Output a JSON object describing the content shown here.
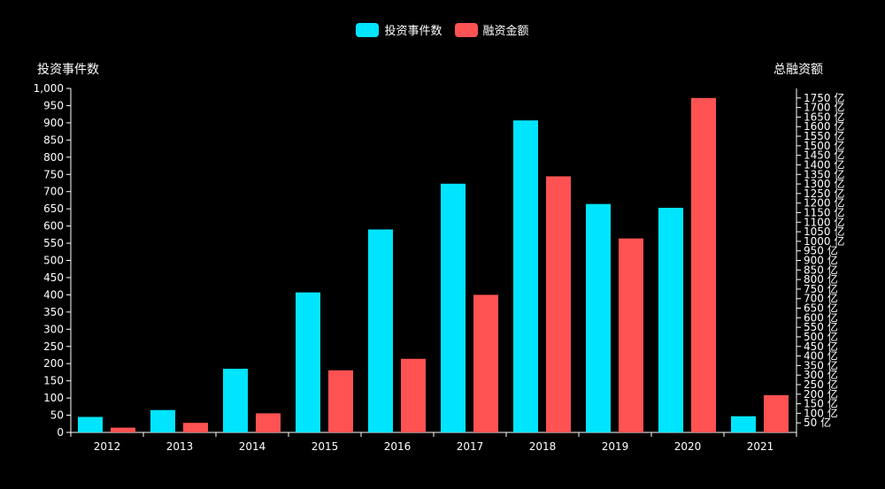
{
  "chart_data": {
    "type": "bar",
    "categories": [
      "2012",
      "2013",
      "2014",
      "2015",
      "2016",
      "2017",
      "2018",
      "2019",
      "2020",
      "2021"
    ],
    "series": [
      {
        "name": "投资事件数",
        "axis": "left",
        "color": "#00E5FF",
        "values": [
          45,
          65,
          185,
          407,
          590,
          723,
          907,
          664,
          653,
          47
        ]
      },
      {
        "name": "融资金额",
        "axis": "right",
        "color": "#FF5252",
        "values": [
          25,
          50,
          100,
          325,
          385,
          720,
          1340,
          1015,
          1750,
          195
        ]
      }
    ],
    "ylabel_left": "投资事件数",
    "ylabel_right": "总融资额",
    "ylim_left": [
      0,
      1000
    ],
    "yticks_left": [
      "0",
      "50",
      "100",
      "150",
      "200",
      "250",
      "300",
      "350",
      "400",
      "450",
      "500",
      "550",
      "600",
      "650",
      "700",
      "750",
      "800",
      "850",
      "900",
      "950",
      "1,000"
    ],
    "ylim_right": [
      0,
      1800
    ],
    "yticks_right": [
      "50 亿",
      "100 亿",
      "150 亿",
      "200 亿",
      "250 亿",
      "300 亿",
      "350 亿",
      "400 亿",
      "450 亿",
      "500 亿",
      "550 亿",
      "600 亿",
      "650 亿",
      "700 亿",
      "750 亿",
      "800 亿",
      "850 亿",
      "900 亿",
      "950 亿",
      "1000 亿",
      "1050 亿",
      "1100 亿",
      "1150 亿",
      "1200 亿",
      "1250 亿",
      "1300 亿",
      "1350 亿",
      "1400 亿",
      "1450 亿",
      "1500 亿",
      "1550 亿",
      "1600 亿",
      "1650 亿",
      "1700 亿",
      "1750 亿"
    ],
    "legend_position": "top-center"
  }
}
